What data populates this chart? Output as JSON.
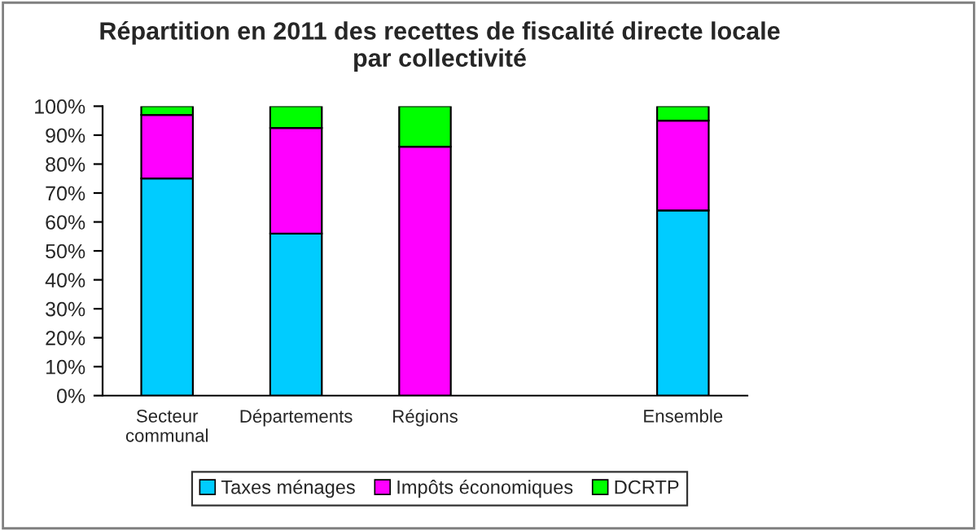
{
  "chart_data": {
    "type": "bar",
    "title": "Répartition en 2011 des recettes de fiscalité directe locale\npar collectivité",
    "categories": [
      "Secteur\ncommunal",
      "Départements",
      "Régions",
      null,
      "Ensemble"
    ],
    "stacked": true,
    "series": [
      {
        "name": "Taxes ménages",
        "color": "#00ccff",
        "values": [
          75,
          56,
          0,
          null,
          64
        ]
      },
      {
        "name": "Impôts économiques",
        "color": "#ff00ff",
        "values": [
          22,
          36.5,
          86,
          null,
          31
        ]
      },
      {
        "name": "DCRTP",
        "color": "#00ff00",
        "values": [
          3,
          7.5,
          14,
          null,
          5
        ]
      }
    ],
    "ylim": [
      0,
      100
    ],
    "yticks": [
      {
        "value": 0,
        "label": "0%"
      },
      {
        "value": 10,
        "label": "10%"
      },
      {
        "value": 20,
        "label": "20%"
      },
      {
        "value": 30,
        "label": "30%"
      },
      {
        "value": 40,
        "label": "40%"
      },
      {
        "value": 50,
        "label": "50%"
      },
      {
        "value": 60,
        "label": "60%"
      },
      {
        "value": 70,
        "label": "70%"
      },
      {
        "value": 80,
        "label": "80%"
      },
      {
        "value": 90,
        "label": "90%"
      },
      {
        "value": 100,
        "label": "100%"
      }
    ],
    "grid": false,
    "legend": "bottom"
  }
}
